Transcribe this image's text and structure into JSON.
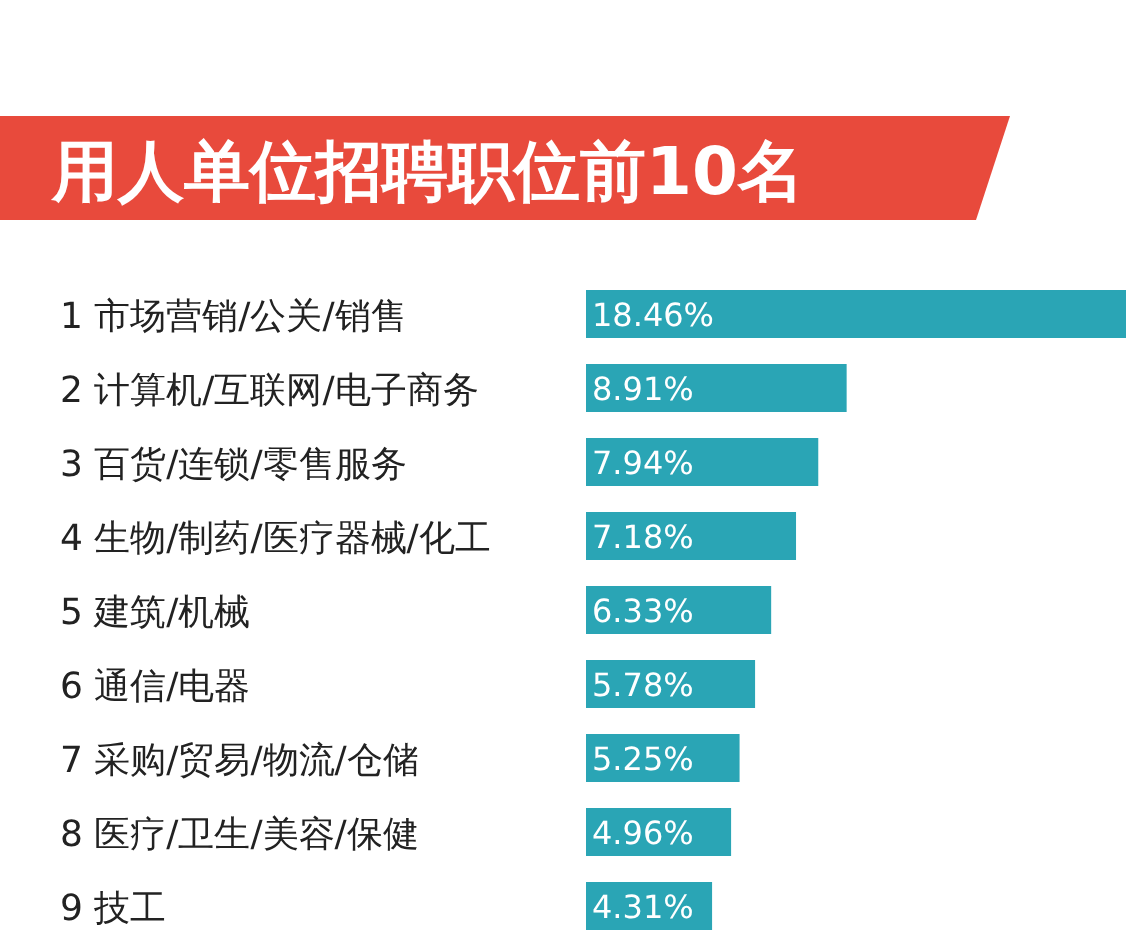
{
  "chart_data": {
    "type": "bar",
    "orientation": "horizontal",
    "title": "用人单位招聘职位前10名",
    "categories": [
      "1 市场营销/公关/销售",
      "2 计算机/互联网/电子商务",
      "3 百货/连锁/零售服务",
      "4 生物/制药/医疗器械/化工",
      "5 建筑/机械",
      "6 通信/电器",
      "7 采购/贸易/物流/仓储",
      "8 医疗/卫生/美容/保健",
      "9 技工"
    ],
    "values": [
      18.46,
      8.91,
      7.94,
      7.18,
      6.33,
      5.78,
      5.25,
      4.96,
      4.31
    ],
    "value_labels": [
      "18.46%",
      "8.91%",
      "7.94%",
      "7.18%",
      "6.33%",
      "5.78%",
      "5.25%",
      "4.96%",
      "4.31%"
    ],
    "color": "#2aa5b5"
  }
}
